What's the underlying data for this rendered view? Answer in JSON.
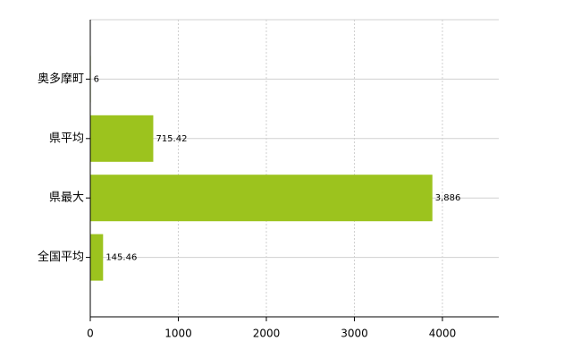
{
  "chart_data": {
    "type": "barh",
    "categories": [
      "奥多摩町",
      "県平均",
      "県最大",
      "全国平均"
    ],
    "values": [
      6,
      715.42,
      3886,
      145.46
    ],
    "value_labels": [
      "6",
      "715.42",
      "3,886",
      "145.46"
    ],
    "color": "#9cc31e",
    "xlim": [
      0,
      4640
    ],
    "xticks": [
      0,
      1000,
      2000,
      3000,
      4000
    ],
    "grid": true
  }
}
